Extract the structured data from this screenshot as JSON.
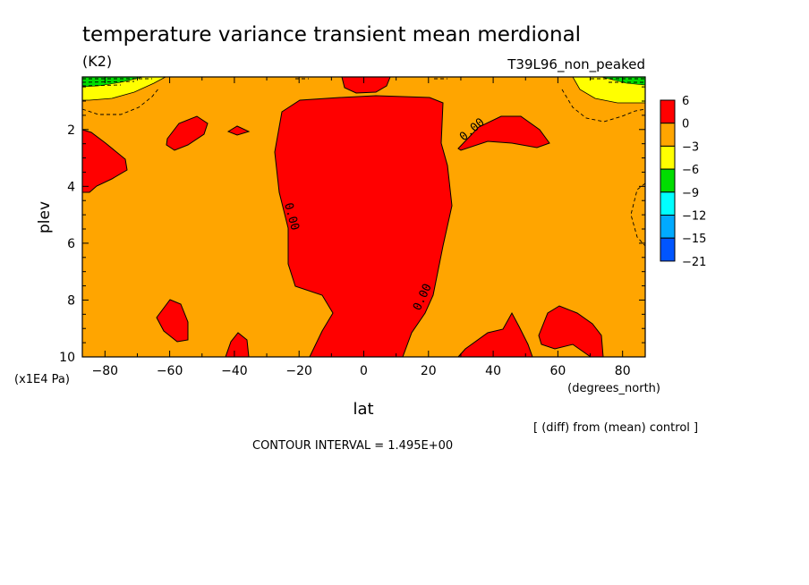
{
  "chart_data": {
    "type": "heatmap",
    "title": "temperature variance transient mean merdional",
    "units": "(K2)",
    "run_label": "T39L96_non_peaked",
    "xlabel": "lat",
    "x_units": "(degrees_north)",
    "ylabel": "plev",
    "y_units": "(x1E4 Pa)",
    "xlim": [
      -87,
      87
    ],
    "ylim": [
      10,
      0.15
    ],
    "x_ticks": [
      -80,
      -60,
      -40,
      -20,
      0,
      20,
      40,
      60,
      80
    ],
    "x_tick_labels": [
      "−80",
      "−60",
      "−40",
      "−20",
      "0",
      "20",
      "40",
      "60",
      "80"
    ],
    "y_ticks": [
      2,
      4,
      6,
      8,
      10
    ],
    "y_tick_labels": [
      "2",
      "4",
      "6",
      "8",
      "10"
    ],
    "contour_labels": [
      "0.00",
      "0.00",
      "0.00"
    ],
    "legend": {
      "levels": [
        "6",
        "0",
        "−3",
        "−6",
        "−9",
        "−12",
        "−15",
        "−21"
      ],
      "colors": [
        "#ff0000",
        "#ffa500",
        "#ffff00",
        "#00dd00",
        "#00ffff",
        "#00aaff",
        "#0055ff"
      ]
    },
    "footnote": "[ (diff) from (mean) control ]",
    "contour_interval": "CONTOUR INTERVAL = 1.495E+00"
  }
}
